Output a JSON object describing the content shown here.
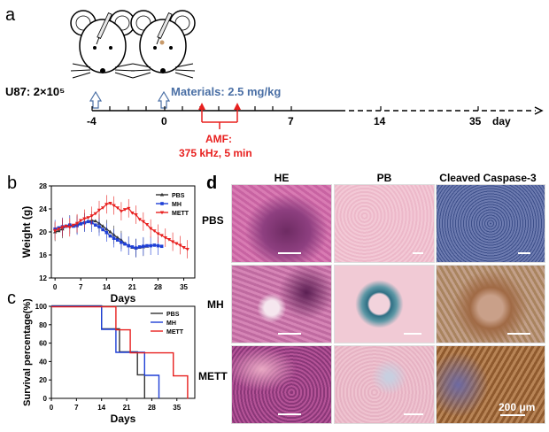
{
  "panels": {
    "a": {
      "letter": "a",
      "cell_label": "U87: 2×10⁵",
      "materials_label": "Materials: 2.5 mg/kg",
      "amf_label": "AMF:",
      "amf_params": "375 kHz, 5 min",
      "day_label": "day",
      "ticks": [
        "-4",
        "0",
        "7",
        "14",
        "35"
      ],
      "colors": {
        "materials": "#4a6fa5",
        "amf": "#e8201f",
        "arrow_blue": "#4a6fa5"
      }
    },
    "b": {
      "letter": "b",
      "chart_data": {
        "type": "line",
        "xlabel": "Days",
        "ylabel": "Weight (g)",
        "xlim": [
          -1,
          38
        ],
        "ylim": [
          12,
          28
        ],
        "xticks": [
          0,
          7,
          14,
          21,
          28,
          35
        ],
        "yticks": [
          12,
          16,
          20,
          24,
          28
        ],
        "legend": "top-right",
        "series": [
          {
            "name": "PBS",
            "color": "#333333",
            "marker": "triangle",
            "x": [
              0,
              1,
              2,
              3,
              4,
              5,
              6,
              7,
              8,
              9,
              10,
              11,
              12,
              13,
              14,
              15,
              16,
              17,
              18,
              19,
              20,
              21,
              22,
              23,
              24,
              25
            ],
            "y": [
              20.0,
              20.2,
              20.5,
              21.0,
              21.3,
              21.0,
              21.3,
              21.5,
              21.7,
              21.8,
              22.0,
              21.9,
              21.5,
              21.0,
              20.5,
              20.0,
              19.5,
              19.0,
              18.6,
              18.0,
              17.6,
              17.3,
              17.2,
              17.3,
              17.4,
              17.5
            ]
          },
          {
            "name": "MH",
            "color": "#1f3fd6",
            "marker": "square",
            "x": [
              0,
              1,
              2,
              3,
              4,
              5,
              6,
              7,
              8,
              9,
              10,
              11,
              12,
              13,
              14,
              15,
              16,
              17,
              18,
              19,
              20,
              21,
              22,
              23,
              24,
              25,
              26,
              27,
              28,
              29
            ],
            "y": [
              20.5,
              20.7,
              20.9,
              21.0,
              21.2,
              21.0,
              21.1,
              21.4,
              21.6,
              21.8,
              21.6,
              21.2,
              20.9,
              20.4,
              19.9,
              19.3,
              18.9,
              18.6,
              18.2,
              17.9,
              17.6,
              17.4,
              17.2,
              17.4,
              17.5,
              17.6,
              17.6,
              17.7,
              17.6,
              17.5
            ]
          },
          {
            "name": "METT",
            "color": "#e8201f",
            "marker": "triangle-down",
            "x": [
              0,
              1,
              2,
              3,
              4,
              5,
              6,
              7,
              8,
              9,
              10,
              11,
              12,
              13,
              14,
              15,
              16,
              17,
              18,
              19,
              20,
              21,
              22,
              23,
              24,
              25,
              26,
              27,
              28,
              29,
              30,
              31,
              32,
              33,
              34,
              35,
              36
            ],
            "y": [
              20.2,
              20.5,
              20.8,
              21.0,
              20.8,
              21.2,
              21.5,
              22.0,
              22.3,
              22.5,
              22.8,
              23.2,
              23.8,
              24.2,
              24.8,
              25.0,
              24.6,
              24.2,
              23.6,
              23.9,
              24.1,
              23.3,
              23.0,
              22.2,
              21.8,
              21.3,
              20.6,
              20.2,
              19.7,
              19.4,
              19.0,
              18.7,
              18.3,
              18.0,
              17.7,
              17.3,
              17.0
            ]
          }
        ]
      }
    },
    "c": {
      "letter": "c",
      "chart_data": {
        "type": "line",
        "xlabel": "Days",
        "ylabel": "Survival percentage(%)",
        "xlim": [
          0,
          40
        ],
        "ylim": [
          0,
          100
        ],
        "xticks": [
          0,
          7,
          14,
          21,
          28,
          35
        ],
        "yticks": [
          0,
          20,
          40,
          60,
          80,
          100
        ],
        "legend": "top-right",
        "series": [
          {
            "name": "PBS",
            "color": "#333333",
            "steps": [
              [
                0,
                100
              ],
              [
                14,
                75
              ],
              [
                19,
                50
              ],
              [
                24,
                25
              ],
              [
                26,
                0
              ]
            ]
          },
          {
            "name": "MH",
            "color": "#1f3fd6",
            "steps": [
              [
                0,
                100
              ],
              [
                14,
                75
              ],
              [
                18,
                50
              ],
              [
                24,
                50
              ],
              [
                26,
                25
              ],
              [
                30,
                0
              ]
            ]
          },
          {
            "name": "METT",
            "color": "#e8201f",
            "steps": [
              [
                0,
                100
              ],
              [
                18,
                75
              ],
              [
                22,
                50
              ],
              [
                28,
                50
              ],
              [
                34,
                25
              ],
              [
                38,
                0
              ]
            ]
          }
        ]
      }
    },
    "d": {
      "letter": "d",
      "columns": [
        "HE",
        "PB",
        "Cleaved Caspase-3"
      ],
      "rows": [
        "PBS",
        "MH",
        "METT"
      ],
      "scale_label": "200 μm"
    }
  }
}
